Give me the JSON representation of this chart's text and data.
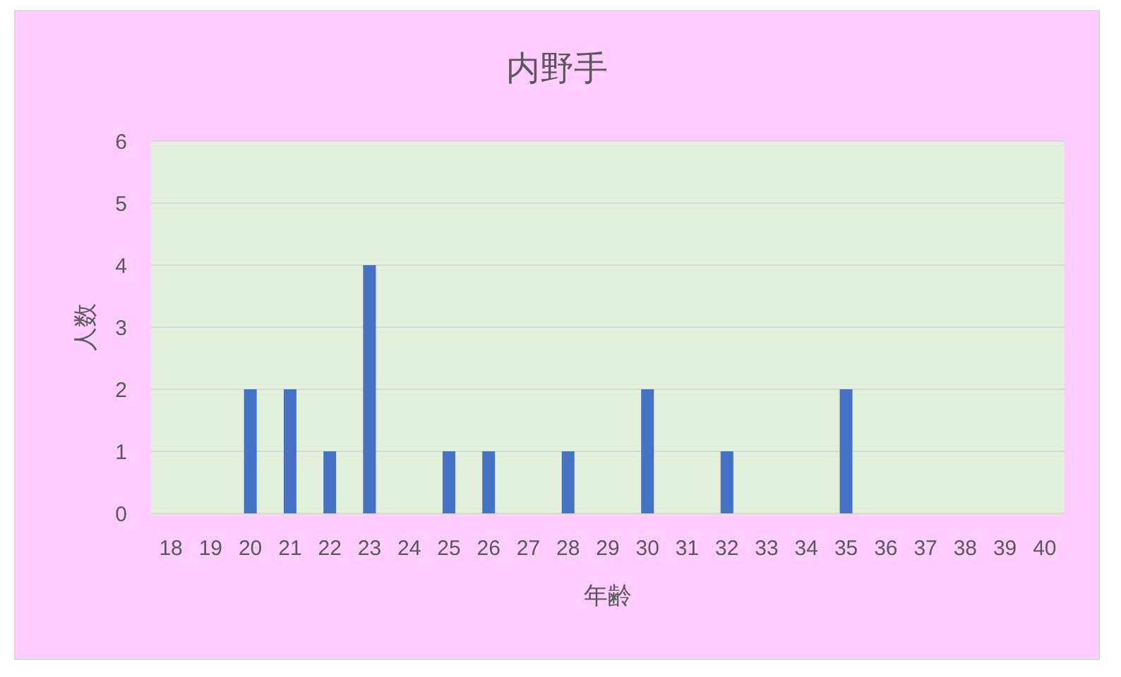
{
  "chart_data": {
    "type": "bar",
    "title": "内野手",
    "xlabel": "年齢",
    "ylabel": "人数",
    "categories": [
      "18",
      "19",
      "20",
      "21",
      "22",
      "23",
      "24",
      "25",
      "26",
      "27",
      "28",
      "29",
      "30",
      "31",
      "32",
      "33",
      "34",
      "35",
      "36",
      "37",
      "38",
      "39",
      "40"
    ],
    "values": [
      0,
      0,
      2,
      2,
      1,
      4,
      0,
      1,
      1,
      0,
      1,
      0,
      2,
      0,
      1,
      0,
      0,
      2,
      0,
      0,
      0,
      0,
      0
    ],
    "color": "#4472c4",
    "ylim": [
      0,
      6
    ],
    "yticks": [
      0,
      1,
      2,
      3,
      4,
      5,
      6
    ],
    "grid": "y"
  }
}
